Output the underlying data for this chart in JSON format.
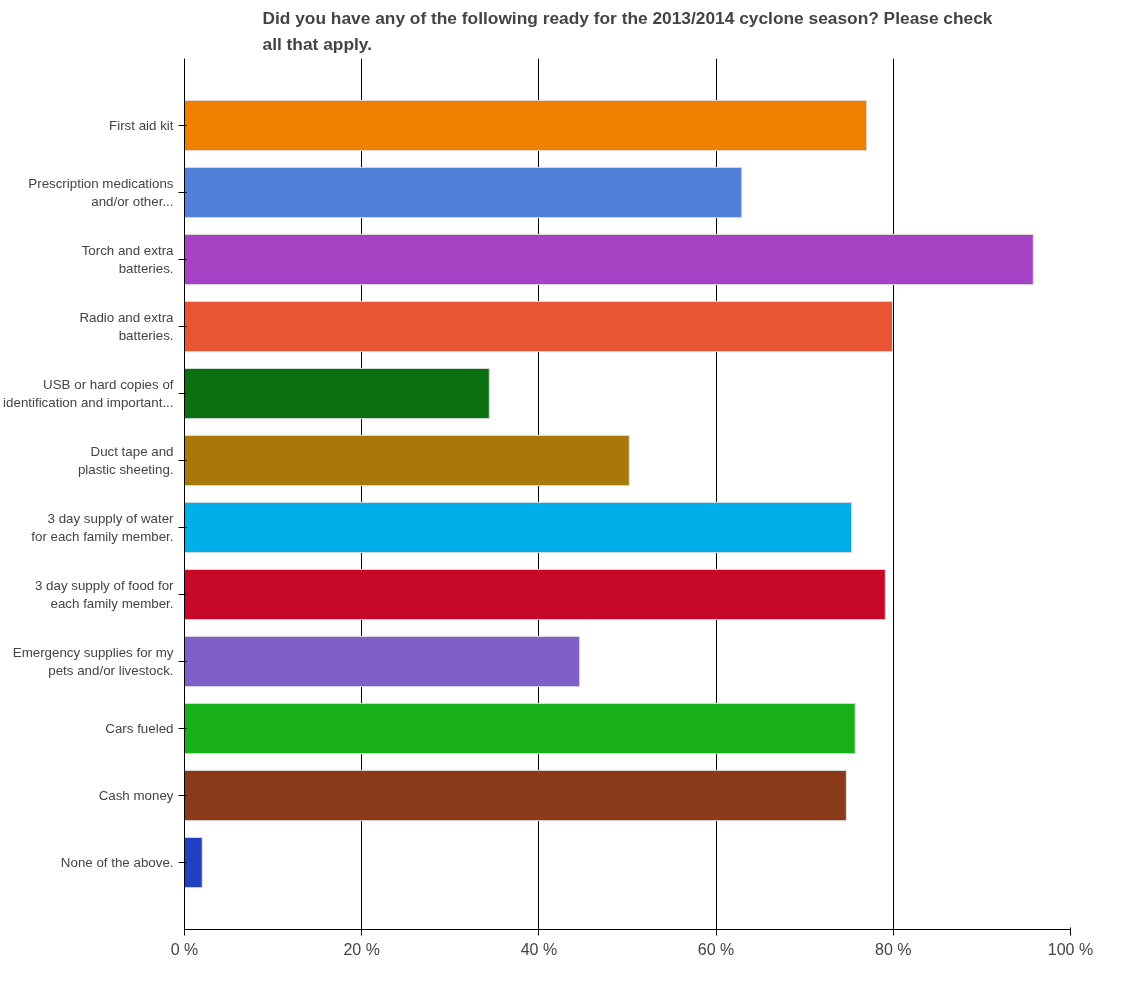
{
  "chart_data": {
    "type": "bar",
    "orientation": "horizontal",
    "title": "Did you have any of the following ready for the 2013/2014 cyclone season? Please check all that apply.",
    "categories": [
      "First aid kit",
      "Prescription medications\nand/or other...",
      "Torch and extra\nbatteries.",
      "Radio and extra\nbatteries.",
      "USB or hard copies of\nidentification and important...",
      "Duct tape and\nplastic sheeting.",
      "3 day supply of water\nfor each family member.",
      "3 day supply of food for\neach family member.",
      "Emergency supplies for my\npets and/or livestock.",
      "Cars fueled",
      "Cash money",
      "None of the above."
    ],
    "values": [
      77.0,
      62.9,
      95.8,
      79.9,
      34.4,
      50.2,
      75.3,
      79.1,
      44.6,
      75.7,
      74.7,
      2.0
    ],
    "colors": [
      "#f08000",
      "#5080d8",
      "#a842c4",
      "#e85434",
      "#0a7010",
      "#a87808",
      "#00aee8",
      "#c80828",
      "#8060c8",
      "#18b018",
      "#8a3a1a",
      "#2040c0"
    ],
    "xlim": [
      0,
      100
    ],
    "xticks": [
      {
        "value": 0,
        "label": "0 %"
      },
      {
        "value": 20,
        "label": "20 %"
      },
      {
        "value": 40,
        "label": "40 %"
      },
      {
        "value": 60,
        "label": "60 %"
      },
      {
        "value": 80,
        "label": "80 %"
      },
      {
        "value": 100,
        "label": "100 %"
      }
    ],
    "grid": "x"
  }
}
